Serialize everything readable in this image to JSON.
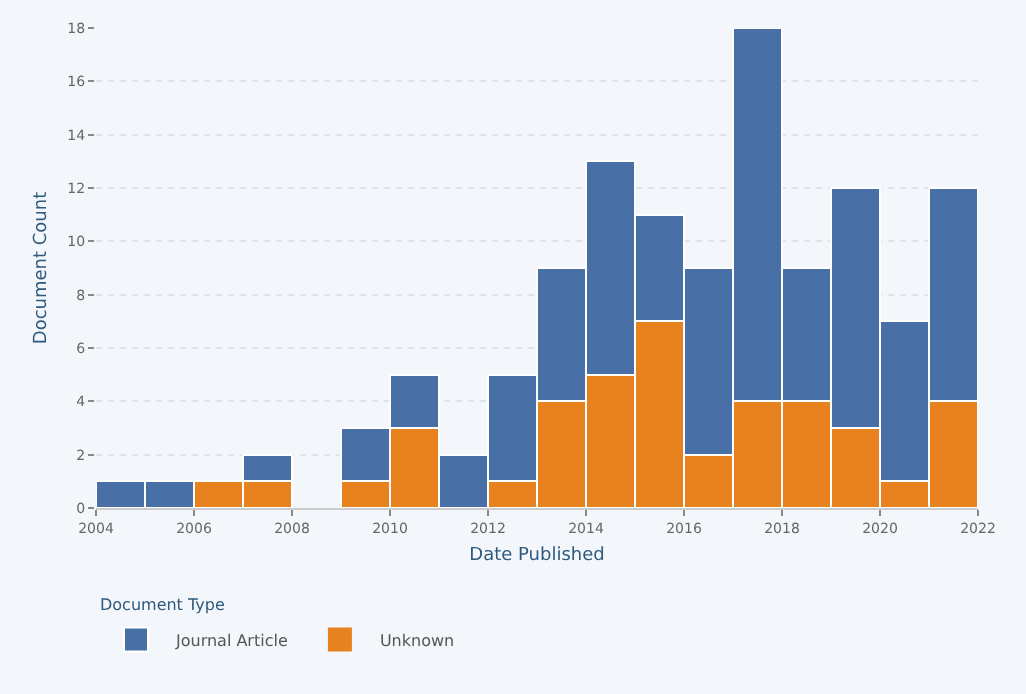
{
  "chart_data": {
    "type": "bar",
    "xlabel": "Date Published",
    "ylabel": "Document Count",
    "legend_title": "Document Type",
    "x": [
      2004.5,
      2005.5,
      2006.5,
      2007.5,
      2008.5,
      2009.5,
      2010.5,
      2011.5,
      2012.5,
      2013.5,
      2014.5,
      2015.5,
      2016.5,
      2017.5,
      2018.5,
      2019.5,
      2020.5,
      2021.5
    ],
    "stacked": true,
    "series": [
      {
        "name": "Journal Article",
        "color": "#4870a6",
        "values": [
          1,
          1,
          0,
          1,
          0,
          2,
          2,
          2,
          4,
          5,
          8,
          4,
          7,
          14,
          5,
          9,
          6,
          8
        ]
      },
      {
        "name": "Unknown",
        "color": "#e8821e",
        "values": [
          0,
          0,
          1,
          1,
          0,
          1,
          3,
          0,
          1,
          4,
          5,
          7,
          2,
          4,
          4,
          3,
          1,
          4
        ]
      }
    ],
    "xlim": [
      2004,
      2022
    ],
    "xticks": [
      2004,
      2006,
      2008,
      2010,
      2012,
      2014,
      2016,
      2018,
      2020,
      2022
    ],
    "ylim": [
      0,
      18
    ],
    "yticks": [
      0,
      2,
      4,
      6,
      8,
      10,
      12,
      14,
      16,
      18
    ],
    "grid": "y",
    "legend": "bottom left"
  }
}
